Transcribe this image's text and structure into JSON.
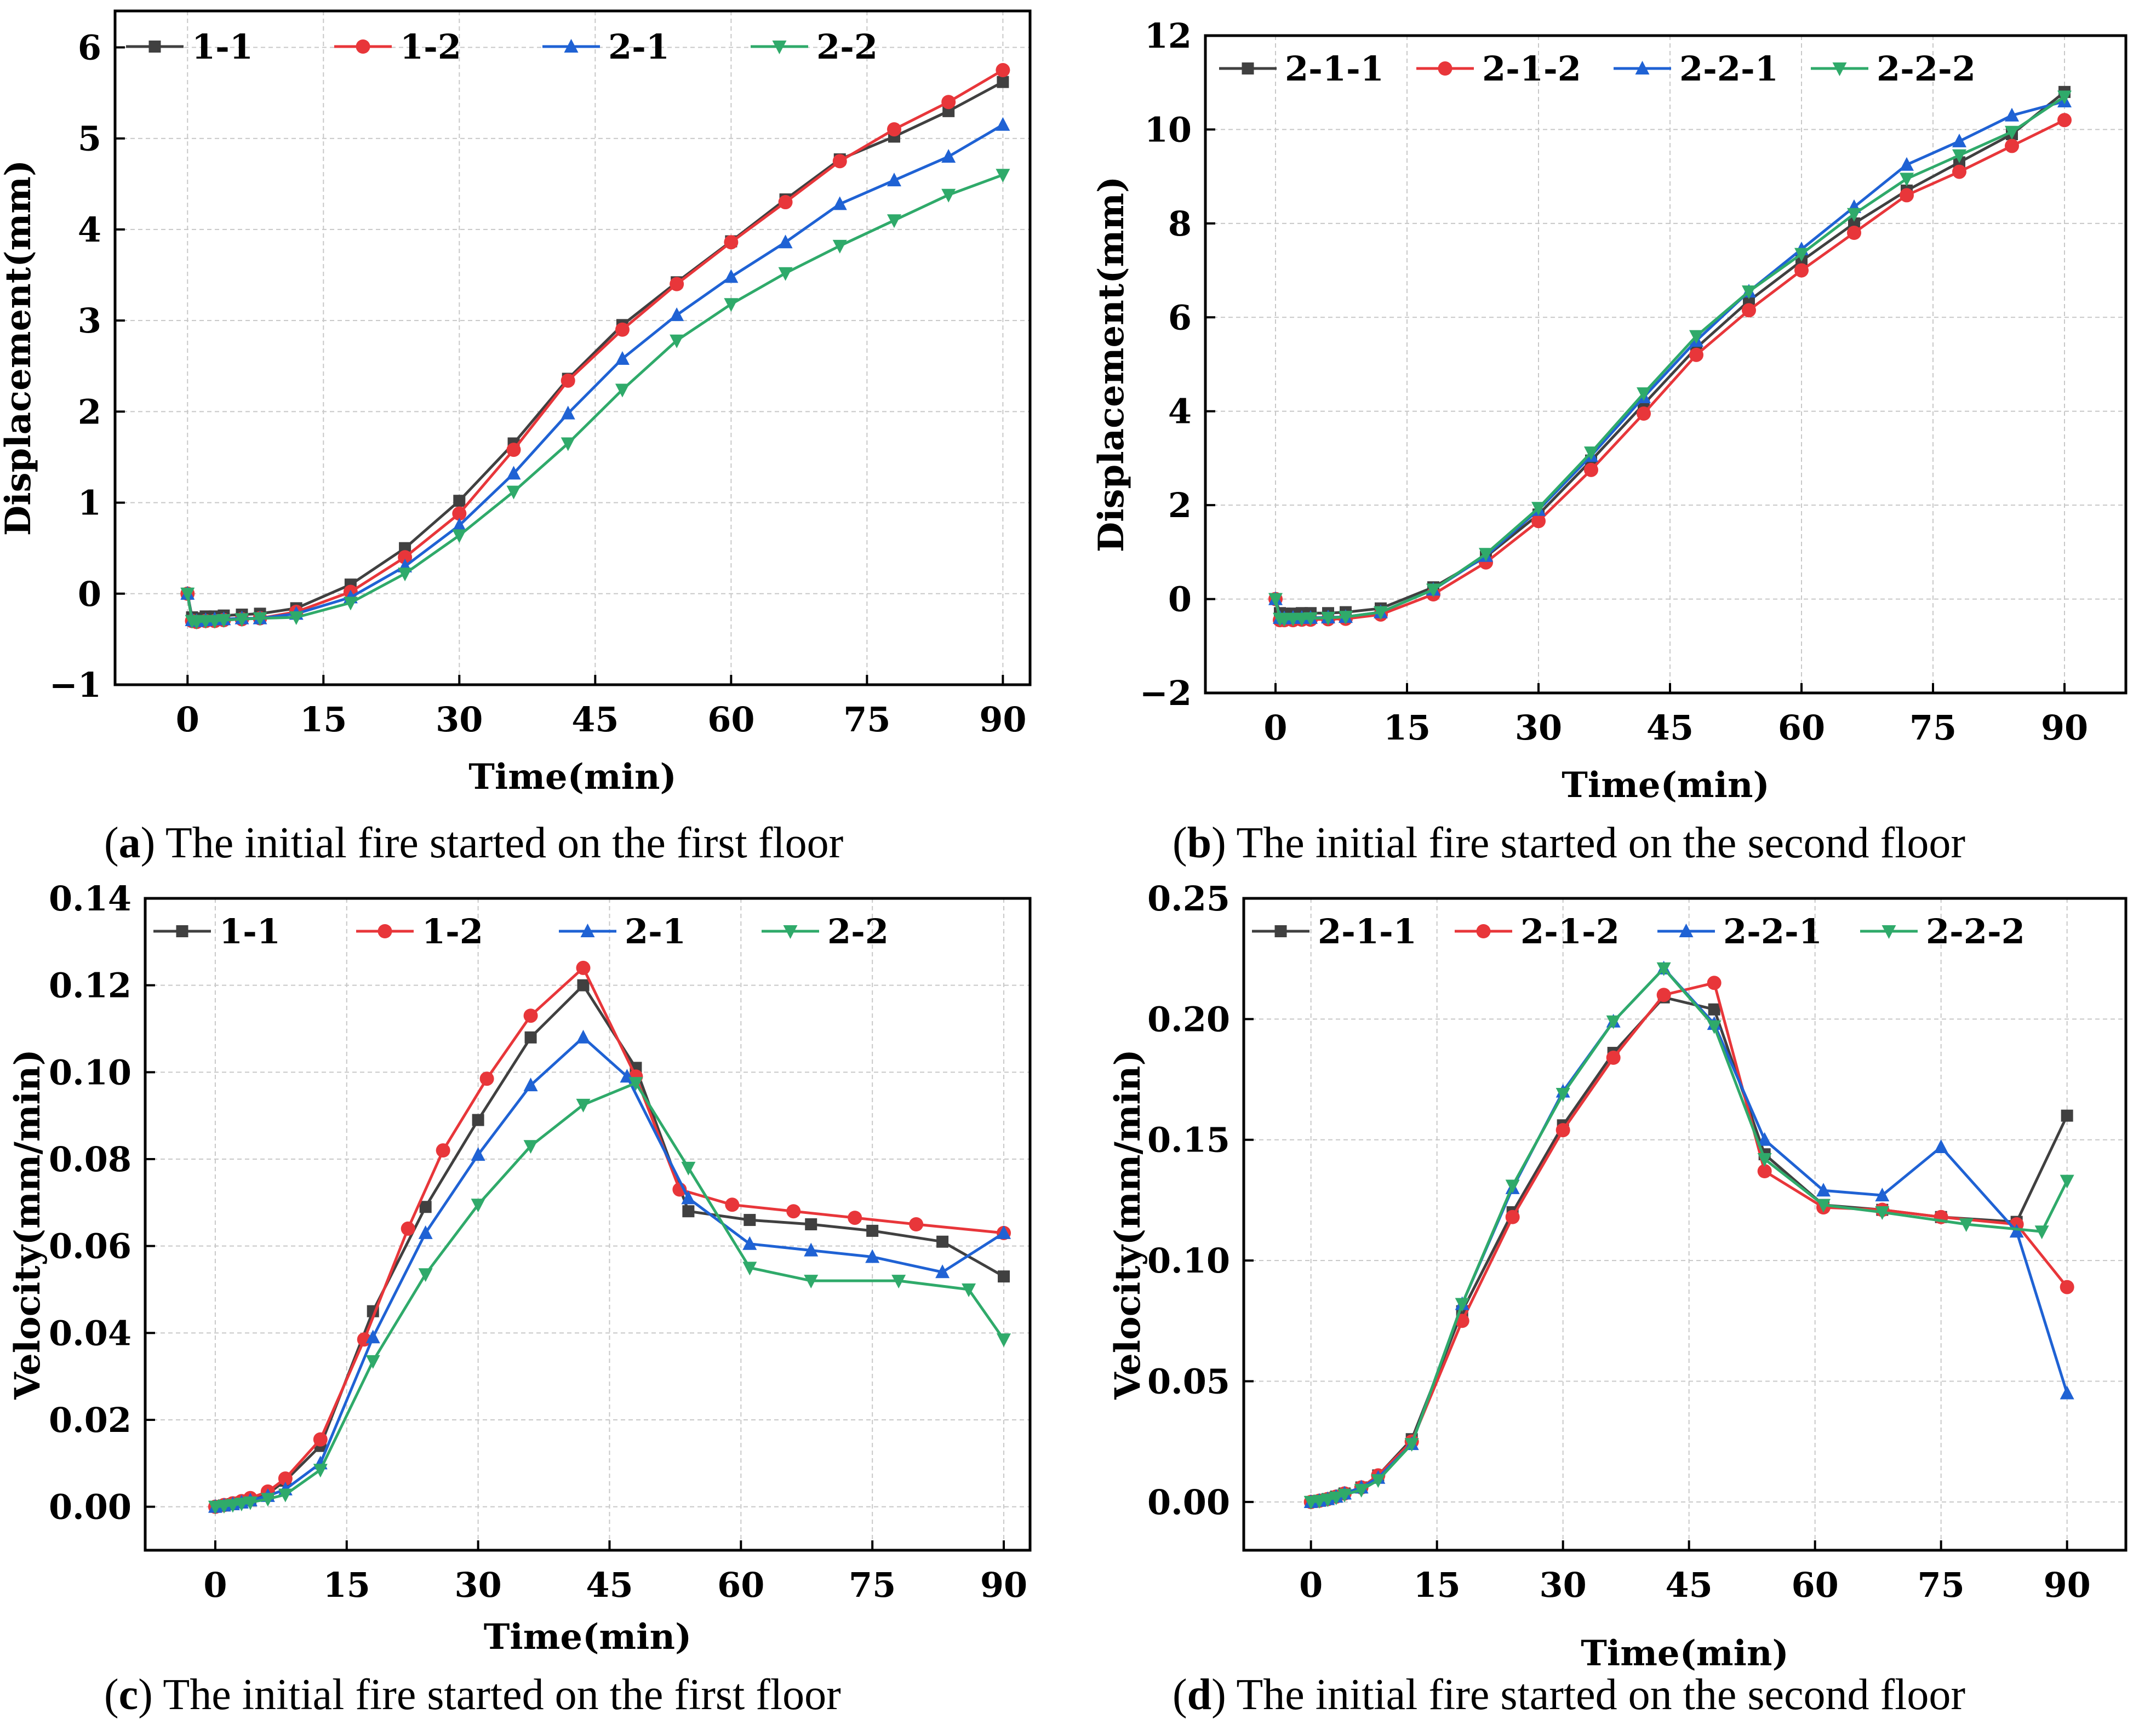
{
  "colors": {
    "s1": "#404040",
    "s2": "#e8363a",
    "s3": "#1f62d4",
    "s4": "#2faa6a"
  },
  "markers": [
    "square",
    "circle",
    "triangle-up",
    "triangle-down"
  ],
  "captions": [
    {
      "letter": "a",
      "text": " The initial fire started on the first floor"
    },
    {
      "letter": "b",
      "text": " The initial fire started on the second floor"
    },
    {
      "letter": "c",
      "text": " The initial fire started on the first floor"
    },
    {
      "letter": "d",
      "text": " The initial fire started on the second floor"
    }
  ],
  "chart_data": [
    {
      "id": "a",
      "type": "line",
      "xlabel": "Time(min)",
      "ylabel": "Displacement(mm)",
      "xlim": [
        -8,
        93
      ],
      "ylim": [
        -1,
        6.4
      ],
      "xticks": [
        0,
        15,
        30,
        45,
        60,
        75,
        90
      ],
      "yticks": [
        -1,
        0,
        1,
        2,
        3,
        4,
        5,
        6
      ],
      "ytick_labels": [
        "−1",
        "0",
        "1",
        "2",
        "3",
        "4",
        "5",
        "6"
      ],
      "grid": true,
      "legend": "top-left, single row",
      "x": [
        0,
        0.5,
        1,
        2,
        3,
        4,
        6,
        8,
        12,
        18,
        24,
        30,
        36,
        42,
        48,
        54,
        60,
        66,
        72,
        78,
        84,
        90
      ],
      "series": [
        {
          "name": "1-1",
          "values": [
            0,
            -0.26,
            -0.27,
            -0.25,
            -0.25,
            -0.24,
            -0.23,
            -0.22,
            -0.16,
            0.1,
            0.5,
            1.02,
            1.65,
            2.36,
            2.95,
            3.42,
            3.87,
            4.33,
            4.77,
            5.02,
            5.3,
            5.62
          ]
        },
        {
          "name": "1-2",
          "values": [
            0,
            -0.3,
            -0.31,
            -0.3,
            -0.3,
            -0.29,
            -0.28,
            -0.27,
            -0.2,
            0.02,
            0.4,
            0.88,
            1.58,
            2.34,
            2.9,
            3.4,
            3.86,
            4.3,
            4.75,
            5.1,
            5.4,
            5.75
          ]
        },
        {
          "name": "2-1",
          "values": [
            0,
            -0.29,
            -0.3,
            -0.29,
            -0.28,
            -0.28,
            -0.27,
            -0.27,
            -0.22,
            -0.04,
            0.3,
            0.75,
            1.32,
            1.98,
            2.58,
            3.06,
            3.48,
            3.86,
            4.28,
            4.54,
            4.8,
            5.15
          ]
        },
        {
          "name": "2-2",
          "values": [
            0,
            -0.3,
            -0.31,
            -0.3,
            -0.3,
            -0.29,
            -0.28,
            -0.27,
            -0.26,
            -0.1,
            0.22,
            0.64,
            1.12,
            1.65,
            2.24,
            2.78,
            3.18,
            3.52,
            3.82,
            4.1,
            4.38,
            4.6
          ]
        }
      ]
    },
    {
      "id": "b",
      "type": "line",
      "xlabel": "Time(min)",
      "ylabel": "Displacement(mm)",
      "xlim": [
        -8,
        97
      ],
      "ylim": [
        -2,
        12
      ],
      "xticks": [
        0,
        15,
        30,
        45,
        60,
        75,
        90
      ],
      "yticks": [
        -2,
        0,
        2,
        4,
        6,
        8,
        10,
        12
      ],
      "ytick_labels": [
        "−2",
        "0",
        "2",
        "4",
        "6",
        "8",
        "10",
        "12"
      ],
      "grid": true,
      "legend": "top-left, single row",
      "x": [
        0,
        0.5,
        1,
        2,
        3,
        4,
        6,
        8,
        12,
        18,
        24,
        30,
        36,
        42,
        48,
        54,
        60,
        66,
        72,
        78,
        84,
        90
      ],
      "series": [
        {
          "name": "2-1-1",
          "values": [
            0,
            -0.3,
            -0.31,
            -0.31,
            -0.3,
            -0.3,
            -0.3,
            -0.28,
            -0.2,
            0.25,
            0.9,
            1.8,
            2.95,
            4.15,
            5.35,
            6.35,
            7.2,
            8.0,
            8.7,
            9.3,
            9.9,
            10.8
          ]
        },
        {
          "name": "2-1-2",
          "values": [
            0,
            -0.45,
            -0.45,
            -0.45,
            -0.44,
            -0.44,
            -0.43,
            -0.42,
            -0.33,
            0.1,
            0.78,
            1.66,
            2.75,
            3.95,
            5.2,
            6.15,
            7.0,
            7.8,
            8.6,
            9.1,
            9.65,
            10.2
          ]
        },
        {
          "name": "2-2-1",
          "values": [
            0,
            -0.4,
            -0.41,
            -0.4,
            -0.4,
            -0.4,
            -0.39,
            -0.38,
            -0.28,
            0.2,
            0.92,
            1.9,
            3.05,
            4.3,
            5.5,
            6.55,
            7.45,
            8.35,
            9.25,
            9.75,
            10.3,
            10.6
          ]
        },
        {
          "name": "2-2-2",
          "values": [
            0,
            -0.42,
            -0.43,
            -0.42,
            -0.42,
            -0.41,
            -0.4,
            -0.38,
            -0.28,
            0.2,
            0.96,
            1.94,
            3.12,
            4.38,
            5.6,
            6.55,
            7.35,
            8.2,
            8.95,
            9.45,
            9.95,
            10.7
          ]
        }
      ]
    },
    {
      "id": "c",
      "type": "line",
      "xlabel": "Time(min)",
      "ylabel": "Velocity(mm/min)",
      "xlim": [
        -8,
        93
      ],
      "ylim": [
        -0.01,
        0.14
      ],
      "xticks": [
        0,
        15,
        30,
        45,
        60,
        75,
        90
      ],
      "yticks": [
        0,
        0.02,
        0.04,
        0.06,
        0.08,
        0.1,
        0.12,
        0.14
      ],
      "ytick_labels": [
        "0.00",
        "0.02",
        "0.04",
        "0.06",
        "0.08",
        "0.10",
        "0.12",
        "0.14"
      ],
      "grid": true,
      "legend": "top-left, single row",
      "series": [
        {
          "name": "1-1",
          "x": [
            0,
            1,
            2,
            3,
            4,
            6,
            8,
            12,
            18,
            24,
            30,
            36,
            42,
            48,
            54,
            61,
            68,
            75,
            83,
            90
          ],
          "values": [
            0,
            0.0003,
            0.0006,
            0.001,
            0.0015,
            0.003,
            0.006,
            0.014,
            0.045,
            0.069,
            0.089,
            0.108,
            0.12,
            0.101,
            0.068,
            0.066,
            0.065,
            0.0635,
            0.061,
            0.053
          ]
        },
        {
          "name": "1-2",
          "x": [
            0,
            1,
            2,
            3,
            4,
            6,
            8,
            12,
            17,
            22,
            26,
            31,
            36,
            42,
            48,
            53,
            59,
            66,
            73,
            80,
            90
          ],
          "values": [
            0,
            0.0004,
            0.0008,
            0.0013,
            0.002,
            0.0035,
            0.0065,
            0.0155,
            0.0385,
            0.064,
            0.082,
            0.0985,
            0.113,
            0.124,
            0.099,
            0.073,
            0.0695,
            0.068,
            0.0665,
            0.065,
            0.063
          ]
        },
        {
          "name": "2-1",
          "x": [
            0,
            1,
            2,
            3,
            4,
            6,
            8,
            12,
            18,
            24,
            30,
            36,
            42,
            47,
            54,
            61,
            68,
            75,
            83,
            90
          ],
          "values": [
            0,
            0.0003,
            0.0006,
            0.001,
            0.0015,
            0.0025,
            0.004,
            0.01,
            0.039,
            0.063,
            0.081,
            0.097,
            0.108,
            0.099,
            0.071,
            0.0605,
            0.059,
            0.0575,
            0.054,
            0.063
          ]
        },
        {
          "name": "2-2",
          "x": [
            0,
            1,
            2,
            3,
            4,
            6,
            8,
            12,
            18,
            24,
            30,
            36,
            42,
            48,
            54,
            61,
            68,
            78,
            86,
            90
          ],
          "values": [
            0,
            0.0002,
            0.0004,
            0.0007,
            0.001,
            0.0018,
            0.0028,
            0.0085,
            0.0335,
            0.0535,
            0.0695,
            0.083,
            0.0925,
            0.0975,
            0.078,
            0.055,
            0.052,
            0.052,
            0.05,
            0.0385
          ]
        }
      ]
    },
    {
      "id": "d",
      "type": "line",
      "xlabel": "Time(min)",
      "ylabel": "Velocity(mm/min)",
      "xlim": [
        -8,
        97
      ],
      "ylim": [
        -0.02,
        0.25
      ],
      "xticks": [
        0,
        15,
        30,
        45,
        60,
        75,
        90
      ],
      "yticks": [
        0,
        0.05,
        0.1,
        0.15,
        0.2,
        0.25
      ],
      "ytick_labels": [
        "0.00",
        "0.05",
        "0.10",
        "0.15",
        "0.20",
        "0.25"
      ],
      "grid": true,
      "legend": "top-left, single row",
      "series": [
        {
          "name": "2-1-1",
          "x": [
            0,
            1,
            2,
            3,
            4,
            6,
            8,
            12,
            18,
            24,
            30,
            36,
            42,
            48,
            54,
            61,
            68,
            75,
            84,
            90
          ],
          "values": [
            0,
            0.0005,
            0.0012,
            0.0022,
            0.0035,
            0.006,
            0.011,
            0.026,
            0.079,
            0.12,
            0.156,
            0.186,
            0.209,
            0.204,
            0.144,
            0.123,
            0.121,
            0.118,
            0.116,
            0.16
          ]
        },
        {
          "name": "2-1-2",
          "x": [
            0,
            1,
            2,
            3,
            4,
            6,
            8,
            12,
            18,
            24,
            30,
            36,
            42,
            48,
            54,
            61,
            68,
            75,
            84,
            90
          ],
          "values": [
            0,
            0.0005,
            0.0012,
            0.0022,
            0.0035,
            0.006,
            0.011,
            0.025,
            0.075,
            0.118,
            0.154,
            0.184,
            0.21,
            0.215,
            0.137,
            0.122,
            0.121,
            0.118,
            0.115,
            0.089
          ]
        },
        {
          "name": "2-2-1",
          "x": [
            0,
            1,
            2,
            3,
            4,
            6,
            8,
            12,
            18,
            24,
            30,
            36,
            42,
            48,
            54,
            61,
            68,
            75,
            84,
            90
          ],
          "values": [
            0,
            0.0005,
            0.0012,
            0.0022,
            0.0035,
            0.006,
            0.01,
            0.024,
            0.082,
            0.13,
            0.17,
            0.199,
            0.221,
            0.198,
            0.15,
            0.129,
            0.127,
            0.147,
            0.112,
            0.045
          ]
        },
        {
          "name": "2-2-2",
          "x": [
            0,
            1,
            2,
            3,
            4,
            6,
            8,
            12,
            18,
            24,
            30,
            36,
            42,
            48,
            54,
            61,
            68,
            78,
            87,
            90
          ],
          "values": [
            0,
            0.0004,
            0.001,
            0.0018,
            0.003,
            0.005,
            0.009,
            0.024,
            0.082,
            0.131,
            0.169,
            0.199,
            0.221,
            0.197,
            0.142,
            0.123,
            0.12,
            0.115,
            0.112,
            0.133
          ]
        }
      ]
    }
  ]
}
